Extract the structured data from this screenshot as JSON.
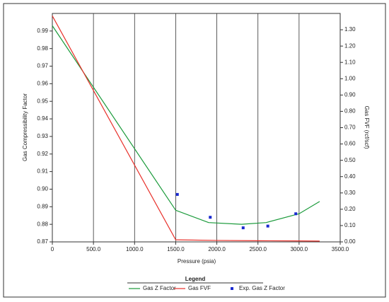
{
  "chart_data": {
    "type": "line",
    "x_label": "Pressure (psia)",
    "y_label": "Gas Compressibility Factor",
    "y2_label": "Gas FVF (rcf/scf)",
    "legend_title": "Legend",
    "xlim": [
      0,
      3500
    ],
    "xticks": [
      0,
      {
        "value": 500,
        "label": "500.0"
      },
      {
        "value": 1000,
        "label": "1000.0"
      },
      {
        "value": 1500,
        "label": "1500.0"
      },
      {
        "value": 2000,
        "label": "2000.0"
      },
      {
        "value": 2500,
        "label": "2500.0"
      },
      {
        "value": 3000,
        "label": "3000.0"
      },
      {
        "value": 3500,
        "label": "3500.0"
      }
    ],
    "ylim": [
      0.87,
      1.0
    ],
    "yticks": [
      0.87,
      0.88,
      0.89,
      {
        "value": 0.9,
        "label": "0.90"
      },
      0.91,
      0.92,
      0.93,
      0.94,
      0.95,
      0.96,
      0.97,
      0.98,
      0.99
    ],
    "y2lim": [
      0,
      1.4
    ],
    "y2ticks": [
      {
        "value": 0,
        "label": "0.00"
      },
      {
        "value": 0.1,
        "label": "0.10"
      },
      {
        "value": 0.2,
        "label": "0.20"
      },
      {
        "value": 0.3,
        "label": "0.30"
      },
      {
        "value": 0.4,
        "label": "0.40"
      },
      {
        "value": 0.5,
        "label": "0.50"
      },
      {
        "value": 0.6,
        "label": "0.60"
      },
      {
        "value": 0.7,
        "label": "0.70"
      },
      {
        "value": 0.8,
        "label": "0.80"
      },
      {
        "value": 0.9,
        "label": "0.90"
      },
      {
        "value": 1.0,
        "label": "1.00"
      },
      {
        "value": 1.1,
        "label": "1.10"
      },
      {
        "value": 1.2,
        "label": "1.20"
      },
      {
        "value": 1.3,
        "label": "1.30"
      }
    ],
    "grid": "x",
    "series": [
      {
        "name": "Gas Z Factor",
        "color": "#1a9a3a",
        "style": "line",
        "x": [
          0,
          1500,
          1900,
          2300,
          2600,
          3000,
          3250
        ],
        "values": [
          0.993,
          0.888,
          0.881,
          0.88,
          0.881,
          0.886,
          0.893
        ]
      },
      {
        "name": "Gas FVF",
        "color": "#e8302a",
        "style": "line",
        "axis": "y2",
        "x": [
          0,
          1500,
          2000,
          2500,
          3000,
          3250
        ],
        "values": [
          1.385,
          0.013,
          0.009,
          0.007,
          0.006,
          0.005
        ]
      },
      {
        "name": "Exp. Gas Z Factor",
        "color": "#1a2ad0",
        "style": "marker",
        "x": [
          1520,
          1920,
          2320,
          2620,
          2960
        ],
        "values": [
          0.897,
          0.884,
          0.878,
          0.879,
          0.886
        ]
      }
    ]
  }
}
